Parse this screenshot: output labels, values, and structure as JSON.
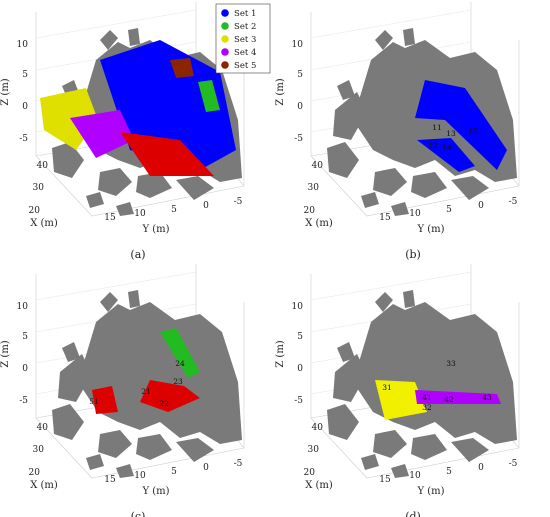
{
  "chart_data": [
    {
      "type": "scatter",
      "panel": "(a)",
      "xlabel": "X (m)",
      "ylabel": "Y (m)",
      "zlabel": "Z (m)",
      "xticks": [
        "20",
        "30",
        "40"
      ],
      "yticks": [
        "15",
        "10",
        "5",
        "0",
        "-5"
      ],
      "zticks": [
        "-5",
        "0",
        "5",
        "10"
      ],
      "legend": {
        "placement": "top-right",
        "entries": [
          {
            "label": "Set 1",
            "color": "#0000ff"
          },
          {
            "label": "Set 2",
            "color": "#22bb22"
          },
          {
            "label": "Set 3",
            "color": "#e0e000"
          },
          {
            "label": "Set 4",
            "color": "#b000ff"
          },
          {
            "label": "Set 5",
            "color": "#8b2500"
          }
        ]
      },
      "annotations": []
    },
    {
      "type": "scatter",
      "panel": "(b)",
      "xlabel": "X (m)",
      "ylabel": "Y (m)",
      "zlabel": "Z (m)",
      "xticks": [
        "20",
        "30",
        "40"
      ],
      "yticks": [
        "15",
        "10",
        "5",
        "0",
        "-5"
      ],
      "zticks": [
        "-5",
        "0",
        "5",
        "10"
      ],
      "highlight_color": "#0000ff",
      "annotations": [
        "11",
        "12",
        "13",
        "14",
        "15"
      ]
    },
    {
      "type": "scatter",
      "panel": "(c)",
      "xlabel": "X (m)",
      "ylabel": "Y (m)",
      "zlabel": "Z (m)",
      "xticks": [
        "20",
        "30",
        "40"
      ],
      "yticks": [
        "15",
        "10",
        "5",
        "0",
        "-5"
      ],
      "zticks": [
        "-5",
        "0",
        "5",
        "10"
      ],
      "highlight_colors": [
        "#22bb22",
        "#dd0000"
      ],
      "annotations": [
        "24",
        "23",
        "21",
        "22",
        "51"
      ]
    },
    {
      "type": "scatter",
      "panel": "(d)",
      "xlabel": "X (m)",
      "ylabel": "Y (m)",
      "zlabel": "Z (m)",
      "xticks": [
        "20",
        "30",
        "40"
      ],
      "yticks": [
        "15",
        "10",
        "5",
        "0",
        "-5"
      ],
      "zticks": [
        "-5",
        "0",
        "5",
        "10"
      ],
      "highlight_colors": [
        "#f0f000",
        "#b000ff"
      ],
      "annotations": [
        "31",
        "32",
        "33",
        "41",
        "42",
        "43"
      ]
    }
  ],
  "colors": {
    "background_rock": "#7a7a7a",
    "set1": "#0000ff",
    "set2": "#22bb22",
    "set3": "#e0e000",
    "set4": "#b000ff",
    "set5": "#8b2500",
    "red": "#dd0000"
  }
}
